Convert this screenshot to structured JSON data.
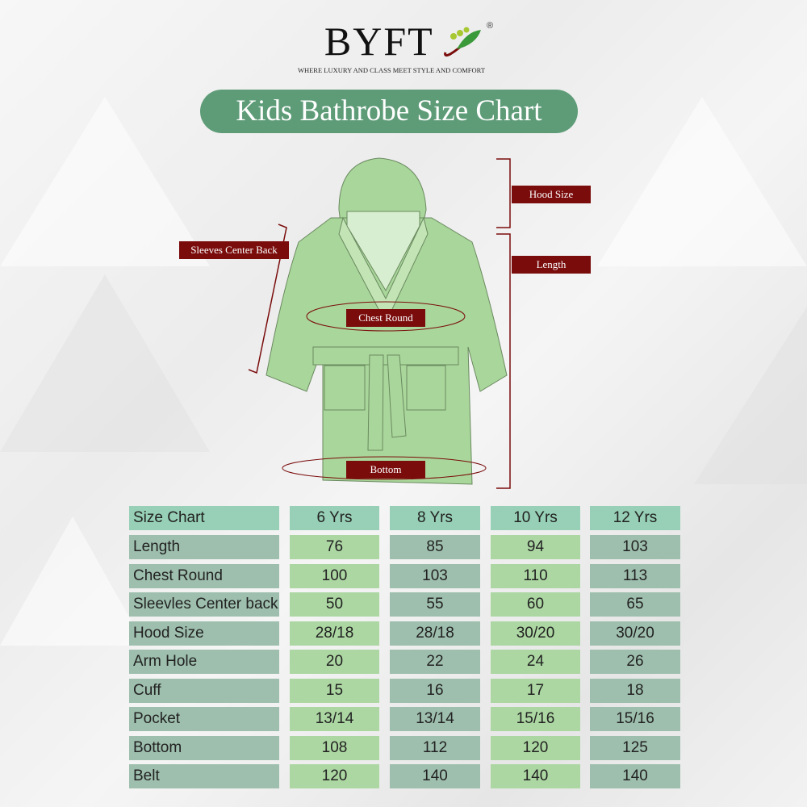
{
  "brand": {
    "name": "BYFT",
    "registered": "®",
    "tagline": "WHERE LUXURY AND CLASS MEET STYLE AND COMFORT"
  },
  "title": "Kids Bathrobe Size Chart",
  "diagram_labels": {
    "hood": "Hood Size",
    "length": "Length",
    "sleeves": "Sleeves Center Back",
    "chest": "Chest Round",
    "bottom": "Bottom"
  },
  "colors": {
    "title_bg": "#5e9c78",
    "label_bg": "#7a0c0c",
    "robe": "#a9d69a",
    "header_cell": "#97d0b6",
    "light_cell": "#acd7a2",
    "gray_cell": "#9ebfae"
  },
  "chart_data": {
    "type": "table",
    "columns": [
      "Size Chart",
      "6 Yrs",
      "8 Yrs",
      "10 Yrs",
      "12 Yrs"
    ],
    "rows": [
      [
        "Length",
        "76",
        "85",
        "94",
        "103"
      ],
      [
        "Chest Round",
        "100",
        "103",
        "110",
        "113"
      ],
      [
        "Sleevles Center back",
        "50",
        "55",
        "60",
        "65"
      ],
      [
        "Hood Size",
        "28/18",
        "28/18",
        "30/20",
        "30/20"
      ],
      [
        "Arm Hole",
        "20",
        "22",
        "24",
        "26"
      ],
      [
        "Cuff",
        "15",
        "16",
        "17",
        "18"
      ],
      [
        "Pocket",
        "13/14",
        "13/14",
        "15/16",
        "15/16"
      ],
      [
        "Bottom",
        "108",
        "112",
        "120",
        "125"
      ],
      [
        "Belt",
        "120",
        "140",
        "140",
        "140"
      ]
    ]
  }
}
